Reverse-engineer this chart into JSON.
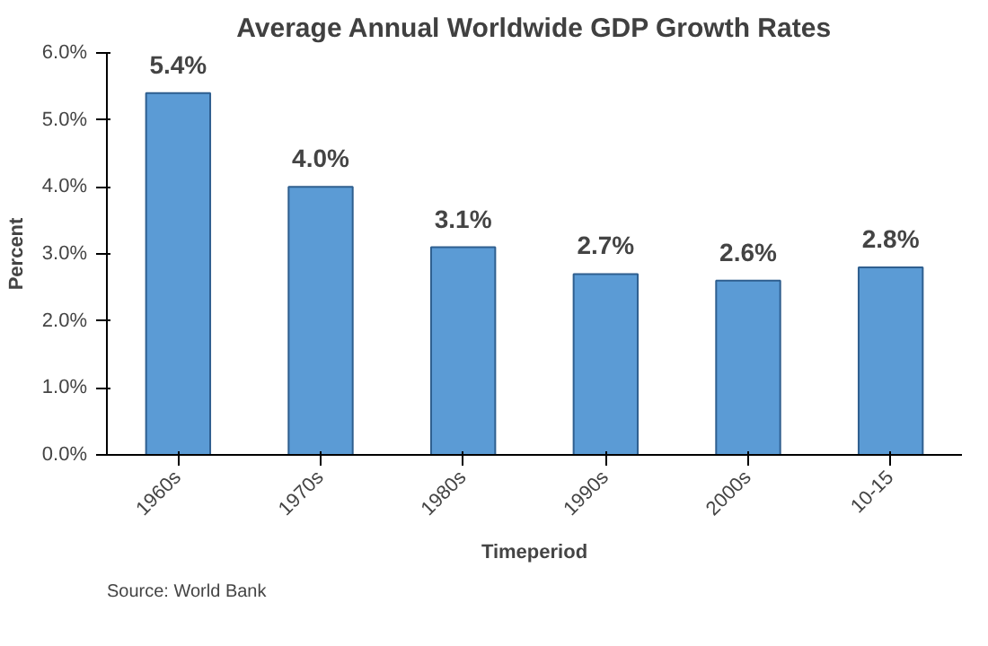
{
  "chart_data": {
    "type": "bar",
    "title": "Average Annual Worldwide GDP Growth Rates",
    "xlabel": "Timeperiod",
    "ylabel": "Percent",
    "categories": [
      "1960s",
      "1970s",
      "1980s",
      "1990s",
      "2000s",
      "10-15"
    ],
    "values": [
      5.4,
      4.0,
      3.1,
      2.7,
      2.6,
      2.8
    ],
    "value_labels": [
      "5.4%",
      "4.0%",
      "3.1%",
      "2.7%",
      "2.6%",
      "2.8%"
    ],
    "color": "#5b9bd5",
    "ylim": [
      0,
      6
    ],
    "yticks": [
      {
        "value": 0,
        "label": "0.0%"
      },
      {
        "value": 1,
        "label": "1.0%"
      },
      {
        "value": 2,
        "label": "2.0%"
      },
      {
        "value": 3,
        "label": "3.0%"
      },
      {
        "value": 4,
        "label": "4.0%"
      },
      {
        "value": 5,
        "label": "5.0%"
      },
      {
        "value": 6,
        "label": "6.0%"
      }
    ],
    "grid": false,
    "annotations": [
      "Source: World Bank"
    ]
  }
}
